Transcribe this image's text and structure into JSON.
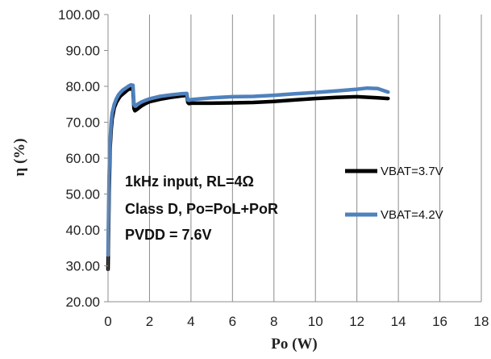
{
  "chart_data": {
    "type": "line",
    "xlabel": "Po (W)",
    "ylabel": "η (%)",
    "xlim": [
      0,
      18
    ],
    "ylim": [
      20,
      100
    ],
    "xticks": [
      "0",
      "2",
      "4",
      "6",
      "8",
      "10",
      "12",
      "14",
      "16",
      "18"
    ],
    "yticks": [
      "20.00",
      "30.00",
      "40.00",
      "50.00",
      "60.00",
      "70.00",
      "80.00",
      "90.00",
      "100.00"
    ],
    "grid": "vertical",
    "legend_placement": "right",
    "annotations": [
      "1kHz input, RL=4Ω",
      "Class D, Po=PoL+PoR",
      "PVDD = 7.6V"
    ],
    "series": [
      {
        "name": "VBAT=3.7V",
        "color": "#000000",
        "x": [
          0.0,
          0.05,
          0.1,
          0.15,
          0.2,
          0.3,
          0.4,
          0.5,
          0.6,
          0.7,
          0.8,
          0.9,
          1.0,
          1.1,
          1.2,
          1.25,
          1.3,
          1.4,
          1.6,
          1.8,
          2.0,
          2.5,
          3.0,
          3.5,
          3.8,
          3.85,
          3.9,
          4.0,
          5,
          6,
          7,
          8,
          9,
          10,
          11,
          12,
          13,
          13.5
        ],
        "y": [
          29,
          50,
          63,
          68,
          71,
          74,
          75.5,
          76.5,
          77.3,
          77.8,
          78.3,
          78.8,
          79.2,
          79.3,
          79.1,
          73.8,
          73.2,
          73.6,
          74.5,
          75.2,
          75.7,
          76.4,
          76.9,
          77.3,
          77.5,
          75.5,
          75.2,
          75.3,
          75.3,
          75.4,
          75.5,
          75.8,
          76.2,
          76.6,
          76.9,
          77.1,
          76.8,
          76.6
        ]
      },
      {
        "name": "VBAT=4.2V",
        "color": "#4F81BD",
        "x": [
          0.0,
          0.05,
          0.1,
          0.15,
          0.2,
          0.3,
          0.4,
          0.5,
          0.6,
          0.7,
          0.8,
          0.9,
          1.0,
          1.1,
          1.2,
          1.25,
          1.3,
          1.4,
          1.6,
          1.8,
          2.0,
          2.5,
          3.0,
          3.5,
          3.8,
          3.85,
          3.9,
          4.0,
          5,
          6,
          7,
          8,
          9,
          10,
          11,
          12,
          12.5,
          13,
          13.5
        ],
        "y": [
          33,
          55,
          65,
          70,
          72.5,
          75,
          76.5,
          77.6,
          78.3,
          78.9,
          79.3,
          79.7,
          80.1,
          80.4,
          80.3,
          75,
          74.5,
          74.9,
          75.6,
          76.1,
          76.5,
          77.2,
          77.6,
          77.9,
          78.0,
          76.2,
          76.1,
          76.3,
          76.8,
          77.1,
          77.2,
          77.5,
          77.9,
          78.3,
          78.7,
          79.2,
          79.5,
          79.4,
          78.4
        ]
      }
    ]
  }
}
